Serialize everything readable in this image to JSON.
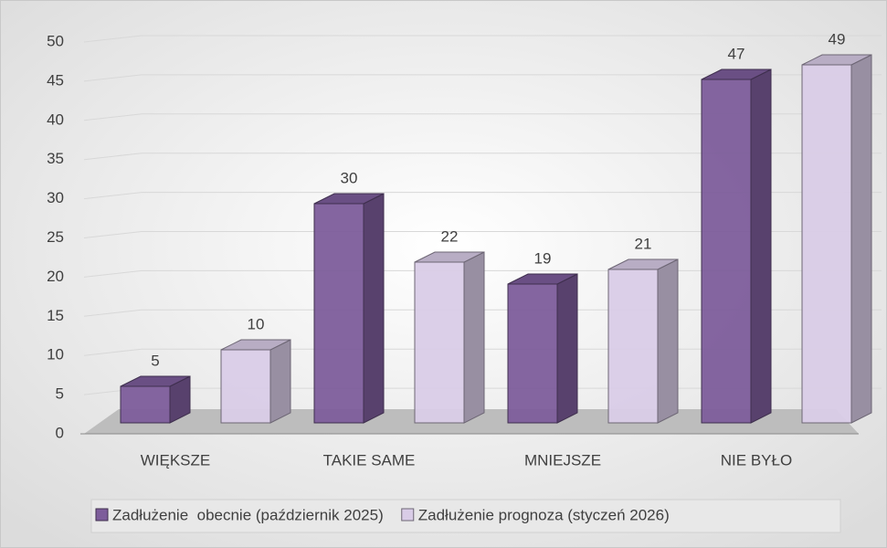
{
  "chart_data": {
    "type": "bar3d",
    "categories": [
      "WIĘKSZE",
      "TAKIE SAME",
      "MNIEJSZE",
      "NIE BYŁO"
    ],
    "series": [
      {
        "name": "Zadłużenie  obecnie (październik 2025)",
        "color": "#7d5d9b",
        "values": [
          5,
          30,
          19,
          47
        ]
      },
      {
        "name": "Zadłużenie prognoza (styczeń 2026)",
        "color": "#d9cce7",
        "values": [
          10,
          22,
          21,
          49
        ]
      }
    ],
    "ylim": [
      0,
      50
    ],
    "yticks": [
      0,
      5,
      10,
      15,
      20,
      25,
      30,
      35,
      40,
      45,
      50
    ],
    "grid": true,
    "legend": "bottom"
  }
}
